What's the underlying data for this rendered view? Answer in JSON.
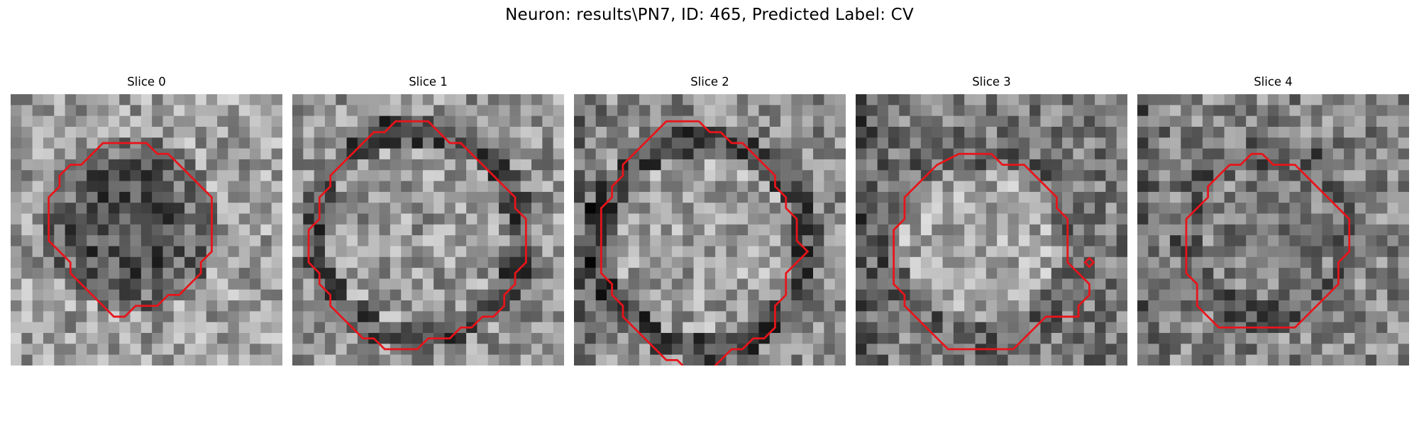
{
  "figure": {
    "suptitle": "Neuron: results\\PN7, ID: 465, Predicted Label: CV",
    "contour_color": "#e8141a",
    "colormap": "gray"
  },
  "panels": [
    {
      "title": "Slice 0",
      "contour": [
        [
          10.5,
          4.5
        ],
        [
          12.5,
          4.5
        ],
        [
          13.5,
          5.5
        ],
        [
          14.5,
          5.5
        ],
        [
          16.5,
          7.5
        ],
        [
          17.5,
          8.5
        ],
        [
          18.5,
          9.5
        ],
        [
          18.5,
          10.5
        ],
        [
          18.5,
          11.5
        ],
        [
          18.5,
          13.5
        ],
        [
          18.5,
          14.5
        ],
        [
          17.5,
          15.5
        ],
        [
          17.5,
          16.5
        ],
        [
          16.5,
          17.5
        ],
        [
          15.5,
          18.5
        ],
        [
          14.5,
          18.5
        ],
        [
          13.5,
          19.5
        ],
        [
          11.5,
          19.5
        ],
        [
          10.5,
          20.5
        ],
        [
          9.5,
          20.5
        ],
        [
          8.5,
          19.5
        ],
        [
          7.5,
          18.5
        ],
        [
          6.5,
          17.5
        ],
        [
          5.5,
          16.5
        ],
        [
          5.5,
          15.5
        ],
        [
          4.5,
          14.5
        ],
        [
          3.5,
          13.5
        ],
        [
          3.5,
          11.5
        ],
        [
          3.5,
          9.5
        ],
        [
          4.5,
          8.5
        ],
        [
          4.5,
          7.5
        ],
        [
          5.5,
          6.5
        ],
        [
          6.5,
          6.5
        ],
        [
          7.5,
          5.5
        ],
        [
          8.5,
          4.5
        ],
        [
          10.5,
          4.5
        ]
      ]
    },
    {
      "title": "Slice 1",
      "contour": [
        [
          10.5,
          2.5
        ],
        [
          12.5,
          2.5
        ],
        [
          13.5,
          3.5
        ],
        [
          14.5,
          4.5
        ],
        [
          15.5,
          4.5
        ],
        [
          16.5,
          5.5
        ],
        [
          17.5,
          6.5
        ],
        [
          18.5,
          7.5
        ],
        [
          19.5,
          8.5
        ],
        [
          20.5,
          9.5
        ],
        [
          20.5,
          10.5
        ],
        [
          21.5,
          11.5
        ],
        [
          21.5,
          13.5
        ],
        [
          21.5,
          15.5
        ],
        [
          20.5,
          16.5
        ],
        [
          20.5,
          17.5
        ],
        [
          19.5,
          18.5
        ],
        [
          19.5,
          19.5
        ],
        [
          18.5,
          20.5
        ],
        [
          17.5,
          20.5
        ],
        [
          16.5,
          21.5
        ],
        [
          15.5,
          21.5
        ],
        [
          14.5,
          22.5
        ],
        [
          12.5,
          22.5
        ],
        [
          11.5,
          23.5
        ],
        [
          10.5,
          23.5
        ],
        [
          8.5,
          23.5
        ],
        [
          7.5,
          22.5
        ],
        [
          6.5,
          22.5
        ],
        [
          5.5,
          21.5
        ],
        [
          4.5,
          20.5
        ],
        [
          3.5,
          19.5
        ],
        [
          3.5,
          18.5
        ],
        [
          2.5,
          17.5
        ],
        [
          2.5,
          16.5
        ],
        [
          1.5,
          15.5
        ],
        [
          1.5,
          14.5
        ],
        [
          1.5,
          12.5
        ],
        [
          2.5,
          11.5
        ],
        [
          2.5,
          9.5
        ],
        [
          3.5,
          8.5
        ],
        [
          3.5,
          7.5
        ],
        [
          4.5,
          6.5
        ],
        [
          5.5,
          5.5
        ],
        [
          6.5,
          4.5
        ],
        [
          7.5,
          3.5
        ],
        [
          8.5,
          3.5
        ],
        [
          9.5,
          2.5
        ],
        [
          10.5,
          2.5
        ]
      ]
    },
    {
      "title": "Slice 2",
      "contour": [
        [
          11.5,
          2.5
        ],
        [
          12.5,
          3.5
        ],
        [
          13.5,
          3.5
        ],
        [
          14.5,
          4.5
        ],
        [
          15.5,
          4.5
        ],
        [
          16.5,
          5.5
        ],
        [
          17.5,
          6.5
        ],
        [
          18.5,
          7.5
        ],
        [
          18.5,
          8.5
        ],
        [
          19.5,
          9.5
        ],
        [
          19.5,
          10.5
        ],
        [
          20.5,
          11.5
        ],
        [
          20.5,
          13.5
        ],
        [
          21.5,
          14.5
        ],
        [
          20.5,
          15.5
        ],
        [
          19.5,
          16.5
        ],
        [
          19.5,
          18.5
        ],
        [
          18.5,
          19.5
        ],
        [
          18.5,
          21.5
        ],
        [
          17.5,
          22.5
        ],
        [
          16.5,
          22.5
        ],
        [
          15.5,
          23.5
        ],
        [
          14.5,
          23.5
        ],
        [
          13.5,
          24.5
        ],
        [
          12.5,
          25.5
        ],
        [
          10.5,
          25.5
        ],
        [
          9.5,
          24.5
        ],
        [
          8.5,
          24.5
        ],
        [
          7.5,
          23.5
        ],
        [
          6.5,
          22.5
        ],
        [
          5.5,
          21.5
        ],
        [
          4.5,
          20.5
        ],
        [
          4.5,
          19.5
        ],
        [
          3.5,
          18.5
        ],
        [
          3.5,
          17.5
        ],
        [
          2.5,
          16.5
        ],
        [
          2.5,
          14.5
        ],
        [
          2.5,
          12.5
        ],
        [
          2.5,
          10.5
        ],
        [
          3.5,
          9.5
        ],
        [
          3.5,
          8.5
        ],
        [
          4.5,
          7.5
        ],
        [
          4.5,
          6.5
        ],
        [
          5.5,
          5.5
        ],
        [
          6.5,
          4.5
        ],
        [
          7.5,
          3.5
        ],
        [
          8.5,
          2.5
        ],
        [
          10.5,
          2.5
        ],
        [
          11.5,
          2.5
        ]
      ]
    },
    {
      "title": "Slice 3",
      "contour": [
        [
          12.5,
          5.5
        ],
        [
          13.5,
          6.5
        ],
        [
          15.5,
          6.5
        ],
        [
          16.5,
          7.5
        ],
        [
          17.5,
          8.5
        ],
        [
          18.5,
          9.5
        ],
        [
          18.5,
          10.5
        ],
        [
          19.5,
          11.5
        ],
        [
          19.5,
          13.5
        ],
        [
          19.5,
          15.5
        ],
        [
          20.5,
          16.5
        ],
        [
          21.5,
          17.5
        ],
        [
          21.5,
          18.5
        ],
        [
          20.5,
          19.5
        ],
        [
          20.5,
          20.5
        ],
        [
          19.5,
          20.5
        ],
        [
          17.5,
          20.5
        ],
        [
          16.5,
          21.5
        ],
        [
          15.5,
          22.5
        ],
        [
          14.5,
          23.5
        ],
        [
          11.5,
          23.5
        ],
        [
          8.5,
          23.5
        ],
        [
          7.5,
          22.5
        ],
        [
          6.5,
          21.5
        ],
        [
          5.5,
          20.5
        ],
        [
          4.5,
          19.5
        ],
        [
          4.5,
          18.5
        ],
        [
          3.5,
          17.5
        ],
        [
          3.5,
          15.5
        ],
        [
          3.5,
          12.5
        ],
        [
          4.5,
          11.5
        ],
        [
          4.5,
          9.5
        ],
        [
          5.5,
          8.5
        ],
        [
          6.5,
          7.5
        ],
        [
          7.5,
          6.5
        ],
        [
          9.5,
          5.5
        ],
        [
          12.5,
          5.5
        ]
      ]
    },
    {
      "title": "Slice 4",
      "contour": [
        [
          11.5,
          5.5
        ],
        [
          12.5,
          6.5
        ],
        [
          14.5,
          6.5
        ],
        [
          15.5,
          7.5
        ],
        [
          16.5,
          8.5
        ],
        [
          17.5,
          9.5
        ],
        [
          18.5,
          10.5
        ],
        [
          19.5,
          11.5
        ],
        [
          19.5,
          14.5
        ],
        [
          18.5,
          15.5
        ],
        [
          18.5,
          17.5
        ],
        [
          17.5,
          18.5
        ],
        [
          16.5,
          19.5
        ],
        [
          15.5,
          20.5
        ],
        [
          14.5,
          21.5
        ],
        [
          9.5,
          21.5
        ],
        [
          7.5,
          21.5
        ],
        [
          6.5,
          20.5
        ],
        [
          5.5,
          19.5
        ],
        [
          5.5,
          17.5
        ],
        [
          4.5,
          16.5
        ],
        [
          4.5,
          14.5
        ],
        [
          4.5,
          11.5
        ],
        [
          5.5,
          10.5
        ],
        [
          6.5,
          9.5
        ],
        [
          6.5,
          8.5
        ],
        [
          7.5,
          7.5
        ],
        [
          8.5,
          6.5
        ],
        [
          9.5,
          6.5
        ],
        [
          10.5,
          5.5
        ],
        [
          11.5,
          5.5
        ]
      ]
    }
  ]
}
